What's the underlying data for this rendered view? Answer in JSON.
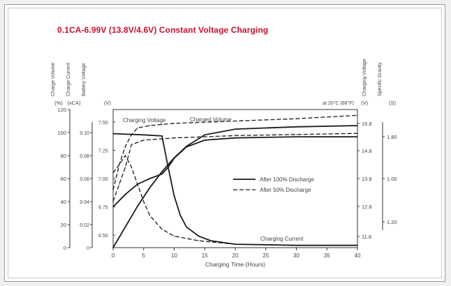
{
  "chart_data": {
    "type": "line",
    "title": "0.1CA-6.99V (13.8V/4.6V) Constant Voltage Charging",
    "title_color": "#c8102e",
    "xlabel": "Charging Time (Hours)",
    "xlim": [
      0,
      40
    ],
    "x_ticks": [
      "0",
      "5",
      "10",
      "15",
      "20",
      "25",
      "30",
      "35",
      "40"
    ],
    "annotation_temp": "at 20°C (68°F)",
    "left_axes": [
      {
        "label": "Charge Volume",
        "unit": "(%)",
        "ticks": [
          "0",
          "20",
          "40",
          "60",
          "80",
          "100",
          "120"
        ]
      },
      {
        "label": "Charge Current",
        "unit": "(xCA)",
        "ticks": [
          "0",
          "0.02",
          "0.04",
          "0.06",
          "0.08",
          "0.10"
        ]
      },
      {
        "label": "Battery Voltage",
        "unit": "(V)",
        "ticks": [
          "6.50",
          "6.75",
          "7.00",
          "7.25",
          "7.50"
        ]
      }
    ],
    "right_axes": [
      {
        "label": "Charging Voltage",
        "unit": "(V)",
        "ticks": [
          "11.8",
          "12.8",
          "13.8",
          "14.8",
          "15.8"
        ]
      },
      {
        "label": "Specific Gravity",
        "unit": "(S)",
        "ticks": [
          "1.20",
          "1.00",
          "1.80"
        ]
      }
    ],
    "legend": {
      "position": "middle-right",
      "entries": [
        {
          "label": "After 100% Discharge",
          "style": "solid"
        },
        {
          "label": "After 50% Discharge",
          "style": "dashed"
        }
      ]
    },
    "curve_labels": [
      "Charging Voltage",
      "Charged Volume",
      "Charging Current"
    ],
    "series": [
      {
        "name": "After 100% Discharge",
        "kind": "charge-volume",
        "style": "solid",
        "x": [
          0,
          2,
          4,
          6,
          8,
          10,
          12,
          15,
          20,
          30,
          40
        ],
        "y": [
          0,
          18,
          36,
          52,
          66,
          78,
          88,
          98,
          103,
          105,
          106
        ]
      },
      {
        "name": "After 100% Discharge",
        "kind": "charging-current",
        "style": "solid",
        "x": [
          0,
          5,
          8,
          9,
          10,
          11,
          12,
          14,
          16,
          20,
          30,
          40
        ],
        "y": [
          0.099,
          0.098,
          0.097,
          0.07,
          0.045,
          0.028,
          0.018,
          0.01,
          0.006,
          0.003,
          0.002,
          0.002
        ]
      },
      {
        "name": "After 100% Discharge",
        "kind": "battery-voltage",
        "style": "solid",
        "x": [
          0,
          2,
          4,
          6,
          8,
          9,
          10,
          12,
          15,
          20,
          30,
          40
        ],
        "y": [
          6.75,
          6.86,
          6.95,
          7.0,
          7.04,
          7.1,
          7.18,
          7.28,
          7.34,
          7.36,
          7.37,
          7.37
        ]
      },
      {
        "name": "After 50% Discharge",
        "kind": "charge-volume",
        "style": "dashed",
        "x": [
          0,
          1,
          2,
          3,
          4,
          6,
          8,
          10,
          15,
          20,
          30,
          40
        ],
        "y": [
          50,
          72,
          88,
          98,
          104,
          106,
          107,
          108,
          109,
          110,
          112,
          115
        ]
      },
      {
        "name": "After 50% Discharge",
        "kind": "charging-current",
        "style": "dashed",
        "x": [
          0,
          1,
          2,
          3,
          4,
          5,
          6,
          8,
          10,
          14,
          20,
          30,
          40
        ],
        "y": [
          0.065,
          0.072,
          0.08,
          0.07,
          0.055,
          0.04,
          0.028,
          0.016,
          0.01,
          0.006,
          0.003,
          0.002,
          0.002
        ]
      },
      {
        "name": "After 50% Discharge",
        "kind": "battery-voltage",
        "style": "dashed",
        "x": [
          0,
          1,
          2,
          3,
          5,
          10,
          15,
          20,
          30,
          40
        ],
        "y": [
          6.8,
          6.95,
          7.1,
          7.3,
          7.34,
          7.36,
          7.37,
          7.38,
          7.39,
          7.4
        ]
      }
    ]
  }
}
